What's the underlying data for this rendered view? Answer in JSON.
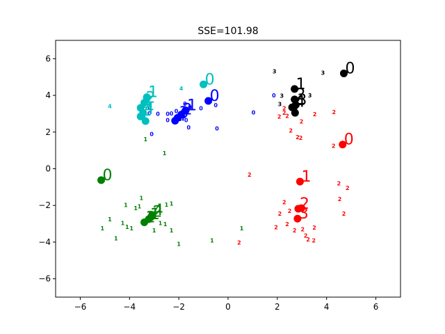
{
  "chart_data": {
    "type": "scatter",
    "title": "SSE=101.98",
    "xlabel": "",
    "ylabel": "",
    "xlim": [
      -7,
      7
    ],
    "ylim": [
      -7,
      7
    ],
    "xticks": [
      -6,
      -4,
      -2,
      0,
      2,
      4,
      6
    ],
    "yticks": [
      -6,
      -4,
      -2,
      0,
      2,
      4,
      6
    ],
    "xtick_labels": [
      "−6",
      "−4",
      "−2",
      "0",
      "2",
      "4",
      "6"
    ],
    "ytick_labels": [
      "−6",
      "−4",
      "−2",
      "0",
      "2",
      "4",
      "6"
    ],
    "grid": false,
    "colors": [
      "#008000",
      "#0000ff",
      "#ff0000",
      "#00bfbf",
      "#000000"
    ],
    "points": [
      {
        "x": 0.87,
        "y": -0.33,
        "label": "2",
        "c": 2
      },
      {
        "x": 1.03,
        "y": 3.07,
        "label": "0",
        "c": 1
      },
      {
        "x": 1.88,
        "y": 5.32,
        "label": "3",
        "c": 4
      },
      {
        "x": 1.86,
        "y": 4.0,
        "label": "0",
        "c": 1
      },
      {
        "x": 2.18,
        "y": 3.98,
        "label": "3",
        "c": 4
      },
      {
        "x": 2.1,
        "y": 3.52,
        "label": "3",
        "c": 4
      },
      {
        "x": 2.28,
        "y": 3.3,
        "label": "2",
        "c": 2
      },
      {
        "x": 2.08,
        "y": 2.85,
        "label": "2",
        "c": 2
      },
      {
        "x": 2.28,
        "y": 3.05,
        "label": "2",
        "c": 2
      },
      {
        "x": 2.55,
        "y": 2.08,
        "label": "2",
        "c": 2
      },
      {
        "x": 2.4,
        "y": 2.88,
        "label": "2",
        "c": 2
      },
      {
        "x": 2.82,
        "y": 1.73,
        "label": "2",
        "c": 2
      },
      {
        "x": 2.95,
        "y": 1.68,
        "label": "2",
        "c": 2
      },
      {
        "x": 2.98,
        "y": 2.58,
        "label": "2",
        "c": 2
      },
      {
        "x": 3.52,
        "y": 2.98,
        "label": "2",
        "c": 2
      },
      {
        "x": 3.32,
        "y": 4.0,
        "label": "3",
        "c": 4
      },
      {
        "x": 3.85,
        "y": 5.23,
        "label": "3",
        "c": 4
      },
      {
        "x": 4.3,
        "y": 3.1,
        "label": "2",
        "c": 2
      },
      {
        "x": 4.28,
        "y": 1.25,
        "label": "2",
        "c": 2
      },
      {
        "x": 0.45,
        "y": -4.03,
        "label": "2",
        "c": 2
      },
      {
        "x": 2.28,
        "y": -1.83,
        "label": "2",
        "c": 2
      },
      {
        "x": 2.1,
        "y": -2.45,
        "label": "2",
        "c": 2
      },
      {
        "x": 2.5,
        "y": -2.3,
        "label": "2",
        "c": 2
      },
      {
        "x": 2.4,
        "y": -3.02,
        "label": "2",
        "c": 2
      },
      {
        "x": 1.95,
        "y": -3.18,
        "label": "2",
        "c": 2
      },
      {
        "x": 2.7,
        "y": -3.35,
        "label": "2",
        "c": 2
      },
      {
        "x": 3.03,
        "y": -3.3,
        "label": "2",
        "c": 2
      },
      {
        "x": 3.15,
        "y": -3.65,
        "label": "2",
        "c": 2
      },
      {
        "x": 3.25,
        "y": -3.85,
        "label": "2",
        "c": 2
      },
      {
        "x": 3.48,
        "y": -3.9,
        "label": "2",
        "c": 2
      },
      {
        "x": 3.5,
        "y": -3.2,
        "label": "2",
        "c": 2
      },
      {
        "x": 4.5,
        "y": -0.8,
        "label": "2",
        "c": 2
      },
      {
        "x": 4.85,
        "y": -1.05,
        "label": "2",
        "c": 2
      },
      {
        "x": 4.53,
        "y": -1.65,
        "label": "2",
        "c": 2
      },
      {
        "x": 4.7,
        "y": -2.45,
        "label": "2",
        "c": 2
      },
      {
        "x": -3.52,
        "y": -1.6,
        "label": "1",
        "c": 0
      },
      {
        "x": -4.15,
        "y": -1.97,
        "label": "1",
        "c": 0
      },
      {
        "x": -3.75,
        "y": -2.15,
        "label": "1",
        "c": 0
      },
      {
        "x": -3.6,
        "y": -2.05,
        "label": "1",
        "c": 0
      },
      {
        "x": -2.5,
        "y": -1.95,
        "label": "1",
        "c": 0
      },
      {
        "x": -2.3,
        "y": -1.9,
        "label": "1",
        "c": 0
      },
      {
        "x": -4.8,
        "y": -2.75,
        "label": "1",
        "c": 0
      },
      {
        "x": -5.1,
        "y": -3.25,
        "label": "1",
        "c": 0
      },
      {
        "x": -4.28,
        "y": -2.95,
        "label": "1",
        "c": 0
      },
      {
        "x": -4.1,
        "y": -3.17,
        "label": "1",
        "c": 0
      },
      {
        "x": -3.92,
        "y": -3.25,
        "label": "1",
        "c": 0
      },
      {
        "x": -2.75,
        "y": -2.95,
        "label": "1",
        "c": 0
      },
      {
        "x": -2.55,
        "y": -3.02,
        "label": "1",
        "c": 0
      },
      {
        "x": -3.0,
        "y": -3.35,
        "label": "1",
        "c": 0
      },
      {
        "x": -2.3,
        "y": -3.35,
        "label": "1",
        "c": 0
      },
      {
        "x": -4.55,
        "y": -3.8,
        "label": "1",
        "c": 0
      },
      {
        "x": -2.0,
        "y": -4.1,
        "label": "1",
        "c": 0
      },
      {
        "x": -0.65,
        "y": -3.9,
        "label": "1",
        "c": 0
      },
      {
        "x": 0.55,
        "y": -3.25,
        "label": "1",
        "c": 0
      },
      {
        "x": -3.35,
        "y": 1.62,
        "label": "1",
        "c": 0
      },
      {
        "x": -2.58,
        "y": 0.85,
        "label": "1",
        "c": 0
      },
      {
        "x": -4.8,
        "y": 3.42,
        "label": "4",
        "c": 3
      },
      {
        "x": -1.9,
        "y": 4.38,
        "label": "4",
        "c": 3
      },
      {
        "x": -3.45,
        "y": 3.65,
        "label": "0",
        "c": 1
      },
      {
        "x": -3.18,
        "y": 3.3,
        "label": "0",
        "c": 1
      },
      {
        "x": -3.2,
        "y": 3.02,
        "label": "0",
        "c": 1
      },
      {
        "x": -2.85,
        "y": 3.0,
        "label": "0",
        "c": 1
      },
      {
        "x": -2.45,
        "y": 3.0,
        "label": "0",
        "c": 1
      },
      {
        "x": -2.3,
        "y": 3.02,
        "label": "0",
        "c": 1
      },
      {
        "x": -2.1,
        "y": 3.15,
        "label": "0",
        "c": 1
      },
      {
        "x": -1.95,
        "y": 3.0,
        "label": "0",
        "c": 1
      },
      {
        "x": -1.95,
        "y": 2.72,
        "label": "0",
        "c": 1
      },
      {
        "x": -1.7,
        "y": 2.65,
        "label": "0",
        "c": 1
      },
      {
        "x": -2.45,
        "y": 2.65,
        "label": "0",
        "c": 1
      },
      {
        "x": -1.75,
        "y": 3.55,
        "label": "0",
        "c": 1
      },
      {
        "x": -1.55,
        "y": 3.35,
        "label": "0",
        "c": 1
      },
      {
        "x": -1.1,
        "y": 3.3,
        "label": "0",
        "c": 1
      },
      {
        "x": -1.6,
        "y": 2.25,
        "label": "0",
        "c": 1
      },
      {
        "x": -3.1,
        "y": 1.9,
        "label": "0",
        "c": 1
      },
      {
        "x": -0.5,
        "y": 3.47,
        "label": "0",
        "c": 1
      },
      {
        "x": -0.45,
        "y": 2.2,
        "label": "0",
        "c": 1
      }
    ],
    "centers": [
      {
        "x": -5.15,
        "y": -0.62,
        "c": 0,
        "label": "0",
        "size": 22
      },
      {
        "x": -3.4,
        "y": -2.92,
        "c": 0,
        "label": "1",
        "size": 22
      },
      {
        "x": -3.22,
        "y": -2.75,
        "c": 0,
        "label": "1",
        "size": 22
      },
      {
        "x": -3.12,
        "y": -2.62,
        "c": 0,
        "label": "2",
        "size": 22
      },
      {
        "x": -3.08,
        "y": -2.52,
        "c": 0,
        "label": "4",
        "size": 22
      },
      {
        "x": -1.0,
        "y": 4.6,
        "c": 3,
        "label": "0",
        "size": 22
      },
      {
        "x": -3.3,
        "y": 3.9,
        "c": 3,
        "label": "1",
        "size": 22
      },
      {
        "x": -3.4,
        "y": 3.6,
        "c": 3,
        "label": "2",
        "size": 22
      },
      {
        "x": -3.55,
        "y": 3.32,
        "c": 3,
        "label": "3",
        "size": 22
      },
      {
        "x": -3.45,
        "y": 3.05,
        "c": 3,
        "label": "4",
        "size": 22
      },
      {
        "x": -3.5,
        "y": 2.9,
        "c": 3,
        "label": "3",
        "size": 22
      },
      {
        "x": -3.55,
        "y": 2.85,
        "c": 3,
        "label": "",
        "size": 22
      },
      {
        "x": -3.35,
        "y": 2.6,
        "c": 3,
        "label": "",
        "size": 22
      },
      {
        "x": -0.8,
        "y": 3.7,
        "c": 1,
        "label": "0",
        "size": 22
      },
      {
        "x": -1.72,
        "y": 3.18,
        "c": 1,
        "label": "1",
        "size": 22
      },
      {
        "x": -1.9,
        "y": 2.95,
        "c": 1,
        "label": "2",
        "size": 22
      },
      {
        "x": -2.05,
        "y": 2.78,
        "c": 1,
        "label": "3",
        "size": 22
      },
      {
        "x": -2.15,
        "y": 2.62,
        "c": 1,
        "label": "4",
        "size": 22
      },
      {
        "x": 4.7,
        "y": 5.2,
        "c": 4,
        "label": "0",
        "size": 22
      },
      {
        "x": 2.7,
        "y": 4.35,
        "c": 4,
        "label": "1",
        "size": 22
      },
      {
        "x": 2.7,
        "y": 3.78,
        "c": 4,
        "label": "2",
        "size": 22
      },
      {
        "x": 2.75,
        "y": 3.48,
        "c": 4,
        "label": "3",
        "size": 22
      },
      {
        "x": 2.68,
        "y": 3.38,
        "c": 4,
        "label": "4",
        "size": 22
      },
      {
        "x": 2.6,
        "y": 3.35,
        "c": 4,
        "label": "",
        "size": 22
      },
      {
        "x": 2.72,
        "y": 3.05,
        "c": 4,
        "label": "",
        "size": 22
      },
      {
        "x": 4.65,
        "y": 1.32,
        "c": 2,
        "label": "0",
        "size": 22
      },
      {
        "x": 2.92,
        "y": -0.7,
        "c": 2,
        "label": "1",
        "size": 22
      },
      {
        "x": 2.85,
        "y": -2.18,
        "c": 2,
        "label": "2",
        "size": 22
      },
      {
        "x": 2.82,
        "y": -2.72,
        "c": 2,
        "label": "3",
        "size": 22
      },
      {
        "x": 2.98,
        "y": -2.15,
        "c": 2,
        "label": "",
        "size": 22
      }
    ]
  }
}
